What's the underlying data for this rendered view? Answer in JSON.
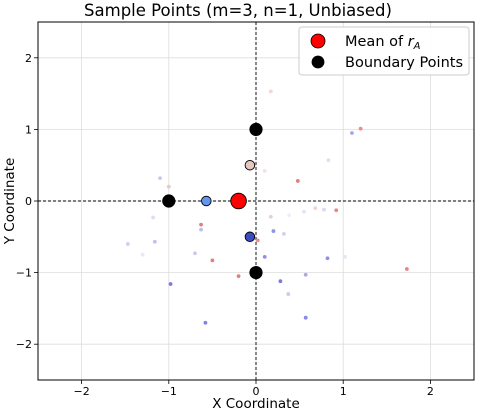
{
  "chart_data": {
    "type": "scatter",
    "title": "Sample Points (m=3, n=1, Unbiased)",
    "xlabel": "X Coordinate",
    "ylabel": "Y Coordinate",
    "xlim": [
      -2.5,
      2.5
    ],
    "ylim": [
      -2.5,
      2.5
    ],
    "xticks": [
      -2,
      -1,
      0,
      1,
      2
    ],
    "yticks": [
      -2,
      -1,
      0,
      1,
      2
    ],
    "tick_labels_x": [
      "−2",
      "−1",
      "0",
      "1",
      "2"
    ],
    "tick_labels_y": [
      "−2",
      "−1",
      "0",
      "1",
      "2"
    ],
    "grid": true,
    "reference_lines": {
      "x": 0,
      "y": 0,
      "style": "dashed"
    },
    "legend": {
      "placement": "top-right",
      "entries": [
        {
          "label_prefix": "Mean of ",
          "label_math": "r",
          "label_sub": "A",
          "color": "#ff0000"
        },
        {
          "label": "Boundary Points",
          "color": "#000000"
        }
      ]
    },
    "mean_point": {
      "x": -0.2,
      "y": 0.0,
      "color": "#ff0000"
    },
    "boundary_points": [
      {
        "x": 0.0,
        "y": 1.0
      },
      {
        "x": -1.0,
        "y": 0.0
      },
      {
        "x": 0.0,
        "y": -1.0
      }
    ],
    "highlight_points": [
      {
        "x": -0.57,
        "y": 0.0,
        "color": "#6495ed"
      },
      {
        "x": -0.07,
        "y": 0.5,
        "color": "#e6c8c0"
      },
      {
        "x": -0.07,
        "y": -0.5,
        "color": "#3b4cc0"
      }
    ],
    "samples": [
      {
        "x": 0.17,
        "y": 1.53,
        "color": "#f3d6cc"
      },
      {
        "x": 1.2,
        "y": 1.01,
        "color": "#f08a8a"
      },
      {
        "x": 1.1,
        "y": 0.95,
        "color": "#a6a6ee"
      },
      {
        "x": 0.83,
        "y": 0.57,
        "color": "#e0e0f5"
      },
      {
        "x": 0.1,
        "y": 0.42,
        "color": "#f5e2dc"
      },
      {
        "x": 0.48,
        "y": 0.28,
        "color": "#e67c7c"
      },
      {
        "x": -1.1,
        "y": 0.32,
        "color": "#c8c8f0"
      },
      {
        "x": -1.0,
        "y": 0.2,
        "color": "#e6c8c8"
      },
      {
        "x": 0.92,
        "y": -0.13,
        "color": "#e68888"
      },
      {
        "x": 0.78,
        "y": -0.12,
        "color": "#d8d8f5"
      },
      {
        "x": 0.68,
        "y": -0.1,
        "color": "#f3d2cc"
      },
      {
        "x": 0.55,
        "y": -0.15,
        "color": "#e4e4f7"
      },
      {
        "x": 0.38,
        "y": -0.2,
        "color": "#eeeef9"
      },
      {
        "x": 0.17,
        "y": -0.22,
        "color": "#e7d0d0"
      },
      {
        "x": -1.18,
        "y": -0.23,
        "color": "#dcdcf5"
      },
      {
        "x": -0.63,
        "y": -0.33,
        "color": "#e08080"
      },
      {
        "x": -0.63,
        "y": -0.4,
        "color": "#b8c0f0"
      },
      {
        "x": 0.2,
        "y": -0.42,
        "color": "#8a94e8"
      },
      {
        "x": 0.32,
        "y": -0.46,
        "color": "#d0d0f2"
      },
      {
        "x": 0.02,
        "y": -0.55,
        "color": "#e89090"
      },
      {
        "x": -1.47,
        "y": -0.6,
        "color": "#cfcff3"
      },
      {
        "x": -1.16,
        "y": -0.57,
        "color": "#c0c0f0"
      },
      {
        "x": -1.3,
        "y": -0.75,
        "color": "#e8e8f9"
      },
      {
        "x": -0.7,
        "y": -0.73,
        "color": "#c8c8f0"
      },
      {
        "x": 0.1,
        "y": -0.78,
        "color": "#8f8fe8"
      },
      {
        "x": -0.5,
        "y": -0.83,
        "color": "#e08080"
      },
      {
        "x": 0.82,
        "y": -0.8,
        "color": "#9090e8"
      },
      {
        "x": 1.02,
        "y": -0.78,
        "color": "#e5e5f8"
      },
      {
        "x": -0.2,
        "y": -1.05,
        "color": "#e08080"
      },
      {
        "x": 0.57,
        "y": -1.03,
        "color": "#a8a8ee"
      },
      {
        "x": 1.73,
        "y": -0.95,
        "color": "#f08080"
      },
      {
        "x": 0.28,
        "y": -1.12,
        "color": "#7a7ae6"
      },
      {
        "x": -0.98,
        "y": -1.16,
        "color": "#7a7ae6"
      },
      {
        "x": 0.37,
        "y": -1.3,
        "color": "#cacaf3"
      },
      {
        "x": 0.57,
        "y": -1.63,
        "color": "#8888e6"
      },
      {
        "x": -0.58,
        "y": -1.7,
        "color": "#8080e6"
      }
    ]
  }
}
